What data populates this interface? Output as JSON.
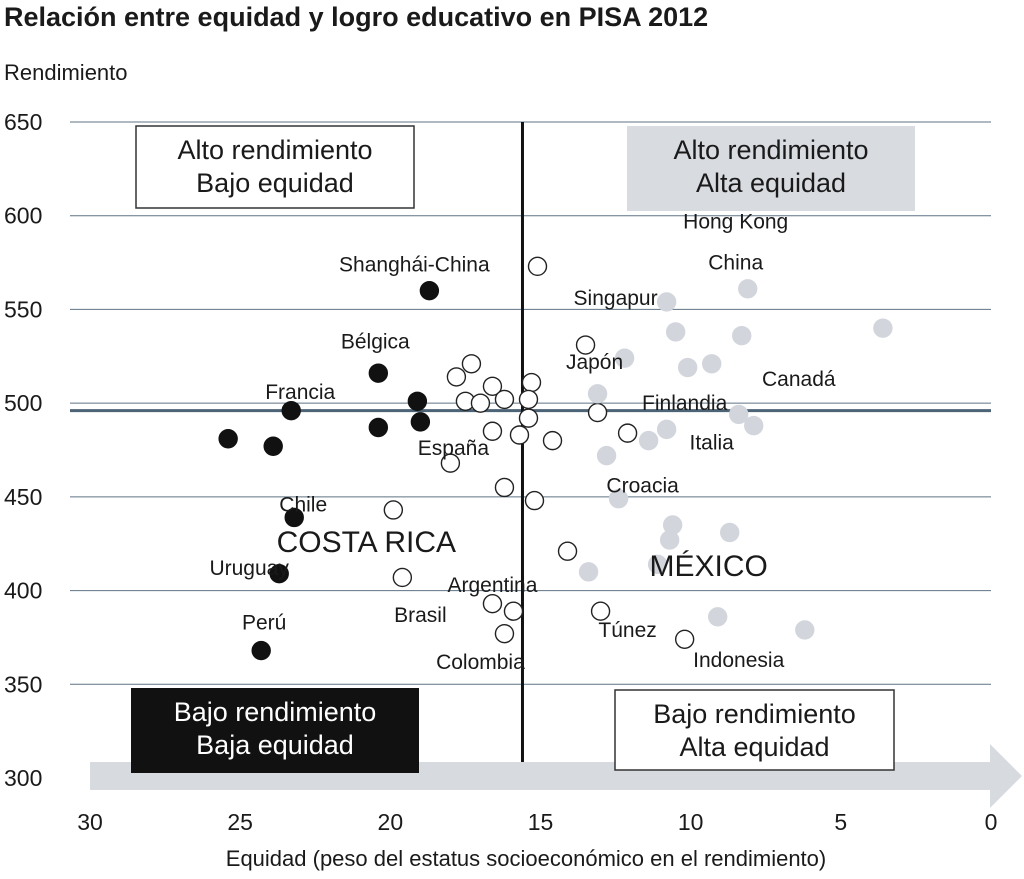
{
  "chart_data": {
    "type": "scatter",
    "title": "Relación entre equidad y logro educativo en PISA 2012",
    "xlabel": "Equidad (peso del estatus socioeconómico en el rendimiento)",
    "ylabel": "Rendimiento",
    "xlim": [
      30,
      0
    ],
    "ylim": [
      300,
      650
    ],
    "x_ticks": [
      "30",
      "25",
      "20",
      "15",
      "10",
      "5",
      "0"
    ],
    "y_ticks": [
      "650",
      "600",
      "550",
      "500",
      "450",
      "400",
      "350",
      "300"
    ],
    "reference_lines": {
      "x": 15.6,
      "y": 496
    },
    "quadrants": [
      {
        "line1": "Alto rendimiento",
        "line2": "Bajo equidad"
      },
      {
        "line1": "Alto rendimiento",
        "line2": "Alta equidad"
      },
      {
        "line1": "Bajo rendimiento",
        "line2": "Baja equidad"
      },
      {
        "line1": "Bajo rendimiento",
        "line2": "Alta equidad"
      }
    ],
    "region_labels": [
      {
        "text": "COSTA RICA",
        "x": 20.8,
        "y": 426
      },
      {
        "text": "MÉXICO",
        "x": 9.4,
        "y": 413
      }
    ],
    "point_labels": [
      {
        "text": "Shanghái-China",
        "x": 19.2,
        "y": 574
      },
      {
        "text": "Bélgica",
        "x": 20.5,
        "y": 533
      },
      {
        "text": "Francia",
        "x": 23.0,
        "y": 506
      },
      {
        "text": "España",
        "x": 17.9,
        "y": 476
      },
      {
        "text": "Chile",
        "x": 22.9,
        "y": 446
      },
      {
        "text": "Uruguay",
        "x": 24.7,
        "y": 412
      },
      {
        "text": "Perú",
        "x": 24.2,
        "y": 383
      },
      {
        "text": "Argentina",
        "x": 16.6,
        "y": 403
      },
      {
        "text": "Brasil",
        "x": 19.0,
        "y": 387
      },
      {
        "text": "Colombia",
        "x": 17.0,
        "y": 362
      },
      {
        "text": "Singapur",
        "x": 12.5,
        "y": 556
      },
      {
        "text": "Japón",
        "x": 13.2,
        "y": 522
      },
      {
        "text": "Hong Kong",
        "x": 8.5,
        "y": 597
      },
      {
        "text": "China",
        "x": 8.5,
        "y": 575
      },
      {
        "text": "Canadá",
        "x": 6.4,
        "y": 513
      },
      {
        "text": "Finlandia",
        "x": 10.2,
        "y": 500
      },
      {
        "text": "Italia",
        "x": 9.3,
        "y": 479
      },
      {
        "text": "Croacia",
        "x": 11.6,
        "y": 456
      },
      {
        "text": "Túnez",
        "x": 12.1,
        "y": 379
      },
      {
        "text": "Indonesia",
        "x": 8.4,
        "y": 363
      }
    ],
    "series": [
      {
        "style": "black",
        "points": [
          [
            18.7,
            560
          ],
          [
            20.4,
            516
          ],
          [
            19.1,
            501
          ],
          [
            20.4,
            487
          ],
          [
            19.0,
            490
          ],
          [
            23.3,
            496
          ],
          [
            25.4,
            481
          ],
          [
            23.9,
            477
          ],
          [
            23.2,
            439
          ],
          [
            23.7,
            409
          ],
          [
            24.3,
            368
          ]
        ]
      },
      {
        "style": "open",
        "points": [
          [
            15.1,
            573
          ],
          [
            13.5,
            531
          ],
          [
            17.3,
            521
          ],
          [
            17.8,
            514
          ],
          [
            16.6,
            509
          ],
          [
            15.3,
            511
          ],
          [
            17.5,
            501
          ],
          [
            17.0,
            500
          ],
          [
            16.2,
            502
          ],
          [
            15.4,
            502
          ],
          [
            15.4,
            492
          ],
          [
            13.1,
            495
          ],
          [
            16.6,
            485
          ],
          [
            15.7,
            483
          ],
          [
            14.6,
            480
          ],
          [
            12.1,
            484
          ],
          [
            18.0,
            468
          ],
          [
            16.2,
            455
          ],
          [
            15.2,
            448
          ],
          [
            19.9,
            443
          ],
          [
            14.1,
            421
          ],
          [
            19.6,
            407
          ],
          [
            16.6,
            393
          ],
          [
            15.9,
            389
          ],
          [
            13.0,
            389
          ],
          [
            16.2,
            377
          ],
          [
            10.2,
            374
          ]
        ]
      },
      {
        "style": "grey",
        "points": [
          [
            8.1,
            561
          ],
          [
            10.8,
            554
          ],
          [
            10.5,
            538
          ],
          [
            8.3,
            536
          ],
          [
            3.6,
            540
          ],
          [
            12.2,
            524
          ],
          [
            9.3,
            521
          ],
          [
            10.1,
            519
          ],
          [
            13.1,
            505
          ],
          [
            8.4,
            494
          ],
          [
            7.9,
            488
          ],
          [
            10.8,
            486
          ],
          [
            11.4,
            480
          ],
          [
            12.8,
            472
          ],
          [
            12.4,
            449
          ],
          [
            10.6,
            435
          ],
          [
            8.7,
            431
          ],
          [
            10.7,
            427
          ],
          [
            11.1,
            414
          ],
          [
            13.4,
            410
          ],
          [
            9.1,
            386
          ],
          [
            6.2,
            379
          ]
        ]
      }
    ],
    "colors": {
      "black": "#111111",
      "grey": "#d2d6dc",
      "open_fill": "#ffffff",
      "line": "#4d6376",
      "arrow": "#d7dbe0"
    }
  }
}
